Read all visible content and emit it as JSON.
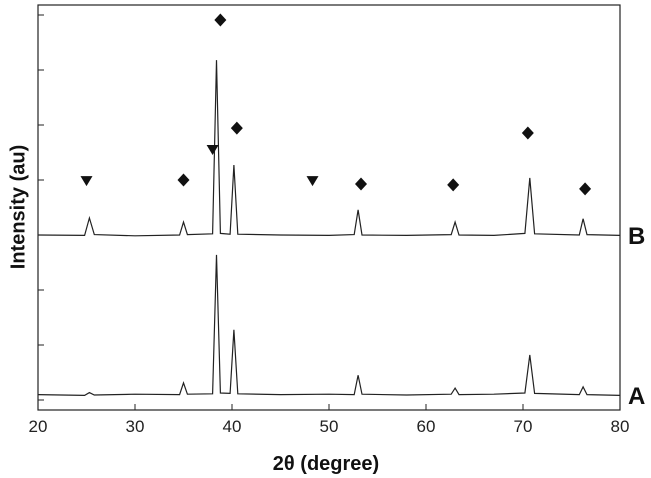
{
  "chart_data": {
    "type": "line",
    "xlabel": "2θ (degree)",
    "ylabel": "Intensity (au)",
    "xlim": [
      20,
      80
    ],
    "xticks": [
      20,
      30,
      40,
      50,
      60,
      70,
      80
    ],
    "ylim": [
      0,
      100
    ],
    "series": [
      {
        "name": "A",
        "color": "#222222",
        "x": [
          20,
          24.8,
          25.3,
          25.8,
          30,
          34.6,
          35,
          35.4,
          38.0,
          38.4,
          38.8,
          39.8,
          40.2,
          40.6,
          45,
          50,
          52.6,
          53,
          53.4,
          58,
          62.6,
          63,
          63.4,
          67,
          70.2,
          70.7,
          71.2,
          75.8,
          76.2,
          76.6,
          80
        ],
        "values": [
          3.8,
          3.6,
          4.3,
          3.7,
          3.9,
          3.8,
          6.7,
          3.9,
          4.0,
          38.3,
          4.2,
          4.1,
          19.8,
          4.0,
          3.8,
          3.9,
          3.8,
          8.6,
          3.9,
          3.7,
          3.9,
          5.4,
          3.8,
          3.9,
          4.2,
          13.6,
          4.1,
          3.8,
          5.7,
          3.8,
          3.6
        ]
      },
      {
        "name": "B",
        "color": "#222222",
        "x": [
          20,
          24.8,
          25.3,
          25.8,
          30,
          34.6,
          35,
          35.4,
          38.0,
          38.4,
          38.8,
          39.8,
          40.2,
          40.6,
          45,
          50,
          52.6,
          53,
          53.4,
          58,
          62.6,
          63,
          63.4,
          67,
          70.2,
          70.7,
          71.2,
          75.8,
          76.2,
          76.6,
          80
        ],
        "values": [
          43.2,
          43.1,
          47.4,
          43.3,
          43.0,
          43.2,
          46.4,
          43.3,
          43.5,
          86.4,
          43.6,
          43.4,
          60.5,
          43.4,
          43.2,
          43.1,
          43.3,
          49.4,
          43.2,
          43.1,
          43.3,
          46.4,
          43.2,
          43.1,
          43.6,
          57.3,
          43.5,
          43.2,
          47.2,
          43.3,
          43.1
        ]
      }
    ],
    "markers": [
      {
        "shape": "triangle",
        "x": [
          25,
          38,
          48.3
        ],
        "y": [
          56.5,
          64.2,
          56.5
        ]
      },
      {
        "shape": "diamond",
        "x": [
          35,
          38.8,
          40.5,
          53.3,
          62.8,
          70.5,
          76.4
        ],
        "y": [
          56.8,
          96.3,
          69.6,
          55.8,
          55.6,
          68.4,
          54.6
        ]
      }
    ]
  }
}
